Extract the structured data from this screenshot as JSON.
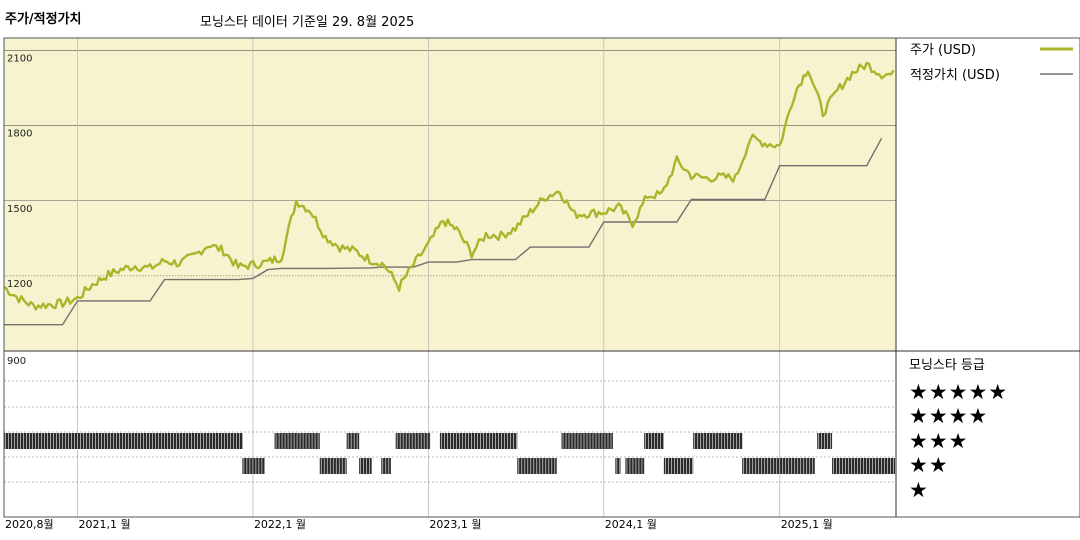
{
  "header": {
    "title": "주가/적정가치",
    "subtitle": "모닝스타 데이터 기준일 29. 8월 2025"
  },
  "legend": {
    "price_label": "주가 (USD)",
    "fair_label": "적정가치 (USD)"
  },
  "rating_panel": {
    "title": "모닝스타 등급",
    "stars": [
      "★★★★★",
      "★★★★",
      "★★★",
      "★★",
      "★"
    ]
  },
  "colors": {
    "price": "#a8b62c",
    "fair": "#707070",
    "panel_bg": "#f7f3cf",
    "bars": "#2a2a2a"
  },
  "chart_data": [
    {
      "type": "line",
      "title": "주가/적정가치",
      "x_range": [
        "2020-08",
        "2025-08"
      ],
      "ylim": [
        900,
        2150
      ],
      "yticks": [
        {
          "value": 2100,
          "label": "2100"
        },
        {
          "value": 1800,
          "label": "1800"
        },
        {
          "value": 1500,
          "label": "1500"
        },
        {
          "value": 1200,
          "label": "1200"
        },
        {
          "value": 900,
          "label": "900"
        }
      ],
      "xticks": [
        {
          "date": "2020-08",
          "label": "2020,8월"
        },
        {
          "date": "2021-01",
          "label": "2021,1 월"
        },
        {
          "date": "2022-01",
          "label": "2022,1 월"
        },
        {
          "date": "2023-01",
          "label": "2023,1 월"
        },
        {
          "date": "2024-01",
          "label": "2024,1 월"
        },
        {
          "date": "2025-01",
          "label": "2025,1 월"
        }
      ],
      "series": [
        {
          "name": "주가 (USD)",
          "x": [
            "2020-08",
            "2020-09",
            "2020-10",
            "2020-11",
            "2020-12",
            "2021-01",
            "2021-02",
            "2021-03",
            "2021-04",
            "2021-05",
            "2021-06",
            "2021-07",
            "2021-08",
            "2021-09",
            "2021-10",
            "2021-11",
            "2021-12",
            "2022-01",
            "2022-02",
            "2022-03",
            "2022-04",
            "2022-05",
            "2022-06",
            "2022-07",
            "2022-08",
            "2022-09",
            "2022-10",
            "2022-11",
            "2022-12",
            "2023-01",
            "2023-02",
            "2023-03",
            "2023-04",
            "2023-05",
            "2023-06",
            "2023-07",
            "2023-08",
            "2023-09",
            "2023-10",
            "2023-11",
            "2023-12",
            "2024-01",
            "2024-02",
            "2024-03",
            "2024-04",
            "2024-05",
            "2024-06",
            "2024-07",
            "2024-08",
            "2024-09",
            "2024-10",
            "2024-11",
            "2024-12",
            "2025-01",
            "2025-02",
            "2025-03",
            "2025-04",
            "2025-05",
            "2025-06",
            "2025-07",
            "2025-08"
          ],
          "values": [
            1155,
            1110,
            1080,
            1085,
            1090,
            1110,
            1165,
            1200,
            1225,
            1240,
            1230,
            1260,
            1250,
            1280,
            1325,
            1300,
            1235,
            1245,
            1255,
            1275,
            1500,
            1460,
            1355,
            1315,
            1300,
            1265,
            1245,
            1155,
            1245,
            1325,
            1420,
            1385,
            1290,
            1365,
            1360,
            1390,
            1455,
            1515,
            1540,
            1445,
            1450,
            1455,
            1475,
            1410,
            1520,
            1525,
            1660,
            1600,
            1590,
            1595,
            1590,
            1750,
            1730,
            1720,
            1930,
            2030,
            1850,
            1940,
            2010,
            2045,
            2005
          ]
        },
        {
          "name": "적정가치 (USD)",
          "x": [
            "2020-08",
            "2020-12",
            "2021-01",
            "2021-06",
            "2021-07",
            "2021-12",
            "2022-01",
            "2022-02",
            "2022-03",
            "2022-05",
            "2022-06",
            "2022-09",
            "2022-10",
            "2022-12",
            "2023-01",
            "2023-03",
            "2023-04",
            "2023-07",
            "2023-08",
            "2023-12",
            "2024-01",
            "2024-06",
            "2024-07",
            "2024-12",
            "2025-01",
            "2025-07",
            "2025-08"
          ],
          "values": [
            1005,
            1005,
            1100,
            1100,
            1185,
            1185,
            1190,
            1225,
            1230,
            1230,
            1230,
            1232,
            1235,
            1235,
            1255,
            1255,
            1265,
            1265,
            1315,
            1315,
            1415,
            1415,
            1505,
            1505,
            1640,
            1640,
            1750
          ]
        }
      ]
    },
    {
      "type": "bar",
      "title": "모닝스타 등급",
      "levels": [
        {
          "label": "★★★★★",
          "stars": 5
        },
        {
          "label": "★★★★",
          "stars": 4
        },
        {
          "label": "★★★",
          "stars": 3
        },
        {
          "label": "★★",
          "stars": 2
        },
        {
          "label": "★",
          "stars": 1
        }
      ],
      "rating_periods": [
        {
          "start": "2020-08-01",
          "end": "2021-12-10",
          "stars": 3
        },
        {
          "start": "2021-12-10",
          "end": "2022-01-25",
          "stars": 2
        },
        {
          "start": "2022-02-15",
          "end": "2022-05-20",
          "stars": 3
        },
        {
          "start": "2022-05-20",
          "end": "2022-07-15",
          "stars": 2
        },
        {
          "start": "2022-07-15",
          "end": "2022-08-10",
          "stars": 3
        },
        {
          "start": "2022-08-10",
          "end": "2022-09-05",
          "stars": 2
        },
        {
          "start": "2022-09-25",
          "end": "2022-10-15",
          "stars": 2
        },
        {
          "start": "2022-10-25",
          "end": "2023-01-05",
          "stars": 3
        },
        {
          "start": "2023-01-25",
          "end": "2023-07-05",
          "stars": 3
        },
        {
          "start": "2023-07-05",
          "end": "2023-09-25",
          "stars": 2
        },
        {
          "start": "2023-10-05",
          "end": "2024-01-20",
          "stars": 3
        },
        {
          "start": "2024-01-25",
          "end": "2024-02-05",
          "stars": 2
        },
        {
          "start": "2024-02-15",
          "end": "2024-03-25",
          "stars": 2
        },
        {
          "start": "2024-03-25",
          "end": "2024-05-05",
          "stars": 3
        },
        {
          "start": "2024-05-05",
          "end": "2024-07-05",
          "stars": 2
        },
        {
          "start": "2024-07-05",
          "end": "2024-10-15",
          "stars": 3
        },
        {
          "start": "2024-10-15",
          "end": "2025-03-15",
          "stars": 2
        },
        {
          "start": "2025-03-20",
          "end": "2025-04-20",
          "stars": 3
        },
        {
          "start": "2025-04-20",
          "end": "2025-08-29",
          "stars": 2
        }
      ]
    }
  ]
}
